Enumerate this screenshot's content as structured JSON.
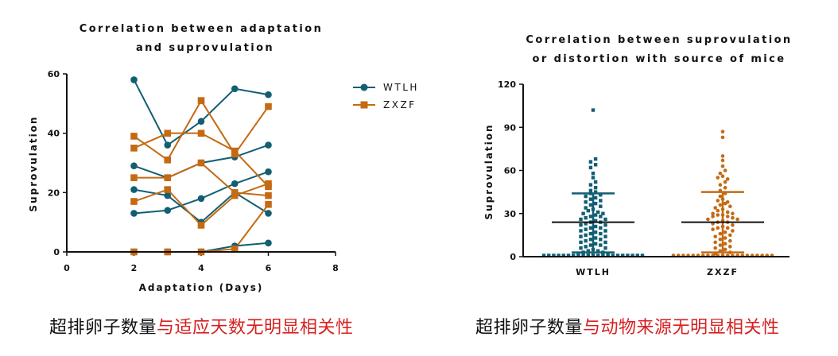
{
  "chart_data": [
    {
      "type": "line",
      "title": [
        "Correlation between adaptation",
        "and suprovulation"
      ],
      "xlabel": "Adaptation (Days)",
      "ylabel": "Suprovulation",
      "xlim": [
        0,
        8
      ],
      "ylim": [
        0,
        60
      ],
      "xticks": [
        0,
        2,
        4,
        6,
        8
      ],
      "yticks": [
        0,
        20,
        40,
        60
      ],
      "x": [
        2,
        3,
        4,
        5,
        6
      ],
      "legend": "top-right",
      "series": [
        {
          "name": "WTLH",
          "color": "#125e73",
          "marker": "circle",
          "lines": [
            [
              58,
              36,
              44,
              55,
              53
            ],
            [
              29,
              25,
              30,
              32,
              36
            ],
            [
              21,
              19,
              10,
              20,
              13
            ],
            [
              13,
              14,
              18,
              23,
              27
            ],
            [
              0,
              0,
              0,
              2,
              3
            ]
          ]
        },
        {
          "name": "ZXZF",
          "color": "#c46a13",
          "marker": "square",
          "lines": [
            [
              39,
              31,
              51,
              33,
              49
            ],
            [
              35,
              40,
              40,
              34,
              22
            ],
            [
              25,
              25,
              30,
              20,
              19
            ],
            [
              17,
              21,
              9,
              19,
              23
            ],
            [
              0,
              0,
              0,
              1,
              16
            ]
          ]
        }
      ]
    },
    {
      "type": "scatter",
      "title": [
        "Correlation between suprovulation",
        "or distortion with source of mice"
      ],
      "ylabel": "Suprovulation",
      "ylim": [
        0,
        120
      ],
      "yticks": [
        0,
        30,
        60,
        90,
        120
      ],
      "categories": [
        "WTLH",
        "ZXZF"
      ],
      "series": [
        {
          "name": "WTLH",
          "color": "#125e73",
          "marker": "square",
          "mean": 24,
          "sd_upper": 44,
          "sd_lower": 3,
          "values": [
            102,
            68,
            66,
            64,
            62,
            58,
            55,
            52,
            50,
            48,
            46,
            45,
            44,
            43,
            42,
            41,
            40,
            39,
            38,
            37,
            36,
            35,
            34,
            33,
            32,
            31,
            30,
            30,
            29,
            28,
            28,
            27,
            26,
            26,
            25,
            24,
            24,
            23,
            22,
            22,
            21,
            20,
            20,
            19,
            18,
            18,
            17,
            16,
            16,
            15,
            14,
            14,
            13,
            12,
            12,
            11,
            10,
            10,
            9,
            8,
            8,
            7,
            6,
            6,
            5,
            4,
            4,
            3,
            3,
            2,
            2,
            1,
            1,
            0,
            0,
            0,
            0,
            0,
            0,
            0,
            0,
            0,
            0,
            0,
            0,
            0,
            0,
            0,
            0,
            0,
            0,
            0
          ]
        },
        {
          "name": "ZXZF",
          "color": "#c46a13",
          "marker": "circle",
          "mean": 24,
          "sd_upper": 45,
          "sd_lower": 3,
          "values": [
            87,
            83,
            70,
            67,
            63,
            60,
            58,
            56,
            55,
            54,
            52,
            50,
            48,
            46,
            44,
            42,
            40,
            39,
            38,
            37,
            36,
            35,
            34,
            33,
            32,
            31,
            30,
            30,
            29,
            29,
            28,
            28,
            27,
            26,
            26,
            25,
            24,
            24,
            23,
            22,
            21,
            20,
            20,
            19,
            18,
            17,
            16,
            15,
            14,
            13,
            12,
            11,
            10,
            9,
            8,
            7,
            6,
            5,
            4,
            3,
            2,
            1,
            0,
            0,
            0,
            0,
            0,
            0,
            0,
            0,
            0,
            0,
            0,
            0,
            0,
            0,
            0,
            0,
            0,
            0,
            0,
            0
          ]
        }
      ]
    }
  ],
  "captions": {
    "left": {
      "black": "超排卵子数量",
      "red": "与适应天数无明显相关性"
    },
    "right": {
      "black": "超排卵子数量",
      "red": "与动物来源无明显相关性"
    }
  }
}
